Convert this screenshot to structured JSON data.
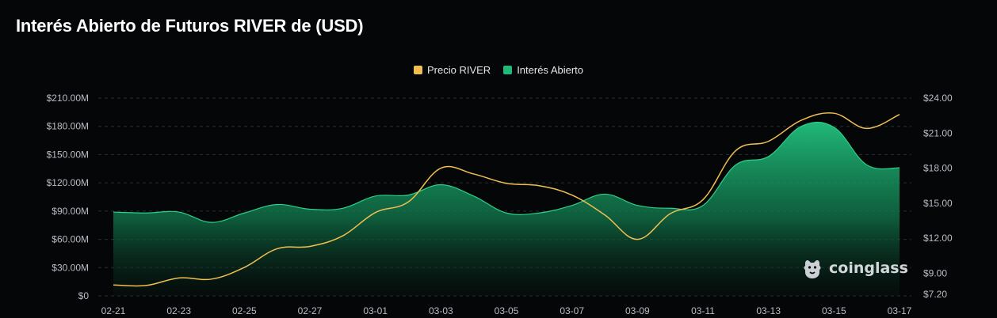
{
  "title": "Interés Abierto de Futuros RIVER de (USD)",
  "watermark": {
    "text": "coinglass",
    "icon": "coinglass-logo"
  },
  "colors": {
    "background": "#050608",
    "price_line": "#f0bf50",
    "open_interest": "#1fb97a",
    "grid": "#2a2d33"
  },
  "legend": [
    {
      "label": "Precio RIVER",
      "color": "#f0bf50"
    },
    {
      "label": "Interés Abierto",
      "color": "#1fb97a"
    }
  ],
  "chart_data": {
    "type": "area",
    "title": "Interés Abierto de Futuros RIVER de (USD)",
    "legend_position": "top-center",
    "grid": "horizontal-dashed",
    "x": [
      "02-21",
      "02-22",
      "02-23",
      "02-24",
      "02-25",
      "02-26",
      "02-27",
      "02-28",
      "03-01",
      "03-02",
      "03-03",
      "03-04",
      "03-05",
      "03-06",
      "03-07",
      "03-08",
      "03-09",
      "03-10",
      "03-11",
      "03-12",
      "03-13",
      "03-14",
      "03-15",
      "03-16",
      "03-17"
    ],
    "x_tick_labels": [
      "02-21",
      "02-23",
      "02-25",
      "02-27",
      "03-01",
      "03-03",
      "03-05",
      "03-07",
      "03-09",
      "03-11",
      "03-13",
      "03-15",
      "03-17"
    ],
    "y_left": {
      "tick_labels": [
        "$0",
        "$30.00M",
        "$60.00M",
        "$90.00M",
        "$120.00M",
        "$150.00M",
        "$180.00M",
        "$210.00M"
      ],
      "ticks": [
        0,
        30,
        60,
        90,
        120,
        150,
        180,
        210
      ],
      "range": [
        0,
        210
      ],
      "unit": "M USD"
    },
    "y_right": {
      "tick_labels": [
        "$7.20",
        "$9.00",
        "$12.00",
        "$15.00",
        "$18.00",
        "$21.00",
        "$24.00"
      ],
      "ticks": [
        7.2,
        9,
        12,
        15,
        18,
        21,
        24
      ],
      "range": [
        7.2,
        24
      ],
      "unit": "USD"
    },
    "series": [
      {
        "name": "Interés Abierto",
        "type": "area",
        "axis": "left",
        "values": [
          89,
          88,
          89,
          78,
          88,
          97,
          92,
          93,
          106,
          107,
          118,
          106,
          88,
          88,
          96,
          108,
          96,
          93,
          96,
          139,
          148,
          180,
          179,
          139,
          136
        ]
      },
      {
        "name": "Precio RIVER",
        "type": "line",
        "axis": "left_scaled_from_right",
        "values": [
          8.0,
          7.95,
          8.6,
          8.5,
          9.5,
          11.1,
          11.3,
          12.2,
          14.2,
          15.1,
          18.0,
          17.5,
          16.7,
          16.5,
          15.7,
          14.0,
          11.9,
          14.1,
          15.3,
          19.5,
          20.3,
          22.1,
          22.7,
          21.4,
          22.6
        ]
      }
    ]
  }
}
